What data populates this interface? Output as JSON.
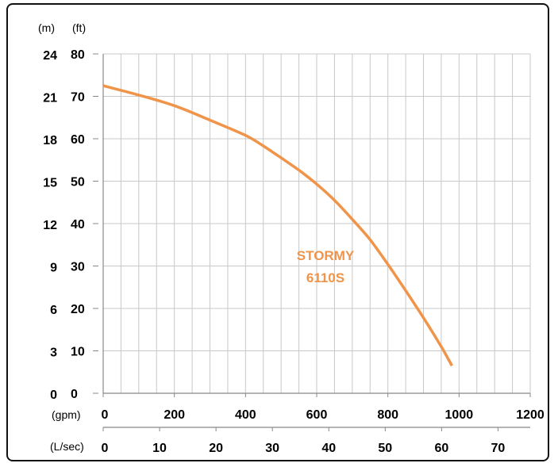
{
  "chart_data": {
    "type": "line",
    "title": "",
    "grid": true,
    "x_unit_primary": "(gpm)",
    "x_unit_secondary": "(L/sec)",
    "y_unit_primary": "(ft)",
    "y_unit_secondary": "(m)",
    "xlim": [
      0,
      1200
    ],
    "ylim": [
      0,
      80
    ],
    "x_ticks_gpm": [
      "0",
      "200",
      "400",
      "600",
      "800",
      "1000",
      "1200"
    ],
    "x_ticks_lsec": [
      "0",
      "10",
      "20",
      "30",
      "40",
      "50",
      "60",
      "70"
    ],
    "y_ticks_ft": [
      "0",
      "10",
      "20",
      "30",
      "40",
      "50",
      "60",
      "70",
      "80"
    ],
    "y_ticks_m": [
      "0",
      "3",
      "6",
      "9",
      "12",
      "15",
      "18",
      "21",
      "24"
    ],
    "series": [
      {
        "name": "STORMY 6110S",
        "color": "#f0944a",
        "x": [
          0,
          100,
          200,
          300,
          400,
          450,
          500,
          550,
          600,
          650,
          700,
          750,
          800,
          850,
          900,
          950,
          980
        ],
        "y": [
          72.5,
          70.3,
          67.8,
          64.4,
          60.8,
          58.3,
          55.5,
          52.6,
          49.3,
          45.5,
          41.0,
          36.2,
          30.4,
          24.2,
          17.8,
          11.0,
          6.5
        ]
      }
    ]
  },
  "curve_label_line1": "STORMY",
  "curve_label_line2": "6110S"
}
